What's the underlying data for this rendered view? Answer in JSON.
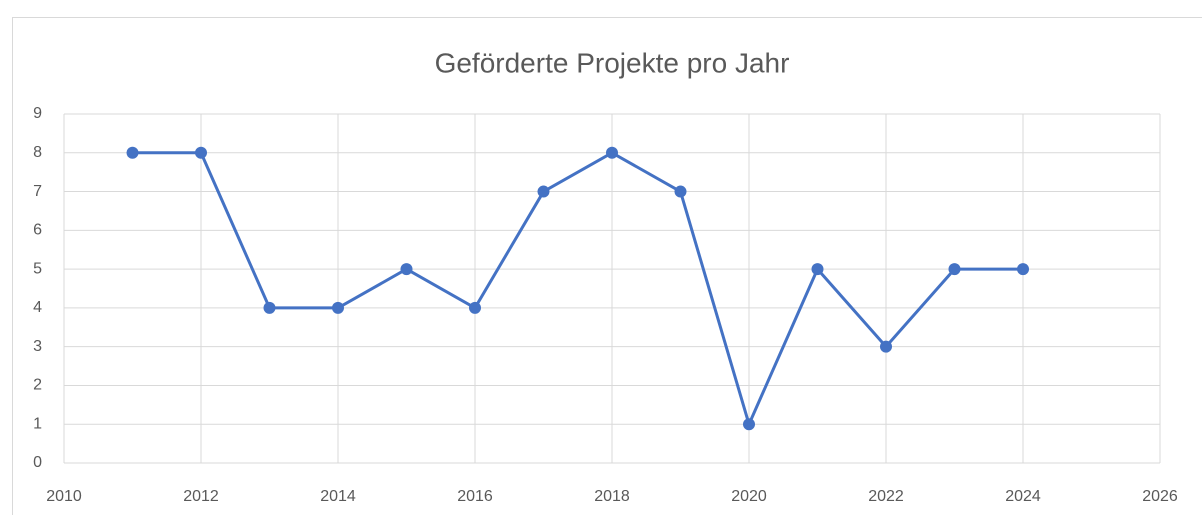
{
  "chart_data": {
    "type": "line",
    "title": "Geförderte Projekte pro Jahr",
    "x": [
      2011,
      2012,
      2013,
      2014,
      2015,
      2016,
      2017,
      2018,
      2019,
      2020,
      2021,
      2022,
      2023,
      2024
    ],
    "series": [
      {
        "name": "Projekte",
        "color": "#4472c4",
        "values": [
          8,
          8,
          4,
          4,
          5,
          4,
          7,
          8,
          7,
          1,
          5,
          3,
          5,
          5
        ]
      }
    ],
    "xlim": [
      2010,
      2026
    ],
    "xticks": [
      2010,
      2012,
      2014,
      2016,
      2018,
      2020,
      2022,
      2024,
      2026
    ],
    "ylim": [
      0,
      9
    ],
    "yticks": [
      0,
      1,
      2,
      3,
      4,
      5,
      6,
      7,
      8,
      9
    ],
    "grid": true
  }
}
